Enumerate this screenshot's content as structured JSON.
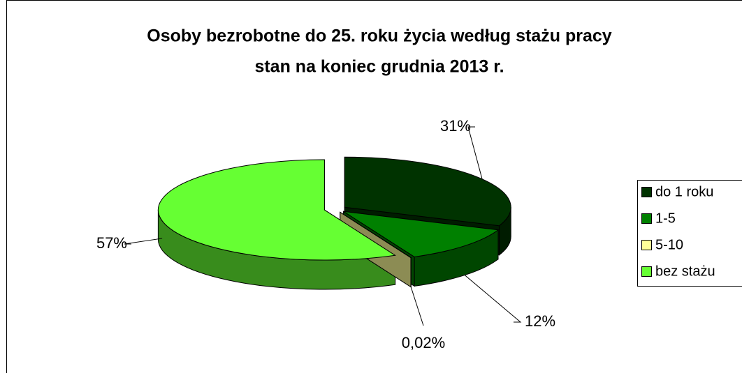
{
  "chart_data": {
    "type": "pie3d",
    "title": [
      "Osoby bezrobotne do 25. roku życia według stażu pracy",
      "stan na koniec grudnia 2013 r."
    ],
    "categories": [
      "do 1 roku",
      "1-5",
      "5-10",
      "bez stażu"
    ],
    "values": [
      31,
      12,
      0.02,
      57
    ],
    "value_labels": [
      "31%",
      "12%",
      "0,02%",
      "57%"
    ],
    "colors": [
      "#003300",
      "#008000",
      "#ffff99",
      "#66ff33"
    ],
    "legend": "right"
  }
}
